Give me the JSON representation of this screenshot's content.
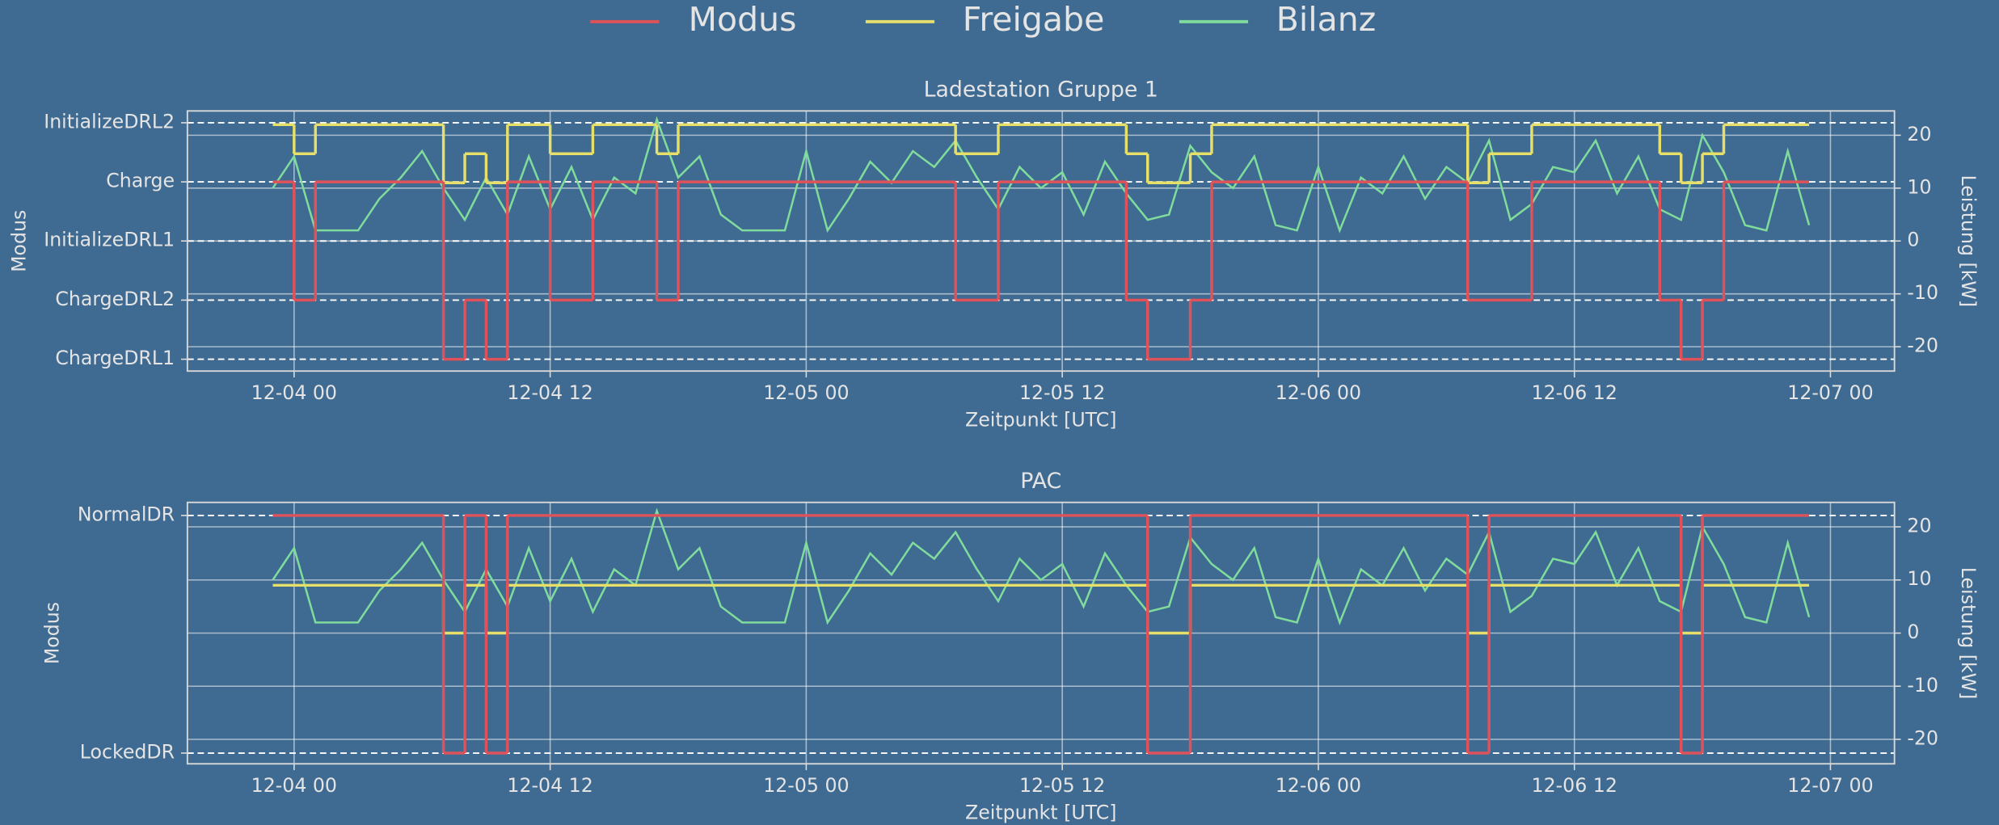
{
  "chart_data": [
    {
      "type": "line",
      "title": "Ladestation Gruppe 1",
      "xlabel": "Zeitpunkt [UTC]",
      "ylabel": "Modus",
      "y2label": "Leistung [kW]",
      "xlim": [
        "12-03 19",
        "12-07 03"
      ],
      "xticks": [
        "12-04 00",
        "12-04 12",
        "12-05 00",
        "12-05 12",
        "12-06 00",
        "12-06 12",
        "12-07 00"
      ],
      "ylim": [
        -0.2,
        4.2
      ],
      "yticks": [
        {
          "value": 4,
          "label": "InitializeDRL2"
        },
        {
          "value": 3,
          "label": "Charge"
        },
        {
          "value": 2,
          "label": "InitializeDRL1"
        },
        {
          "value": 1,
          "label": "ChargeDRL2"
        },
        {
          "value": 0,
          "label": "ChargeDRL1"
        }
      ],
      "y2lim": [
        -24.6,
        24.6
      ],
      "y2ticks": [
        -20,
        -10,
        0,
        10,
        20
      ],
      "grid": true,
      "legend": "upper center",
      "series": [
        {
          "name": "Modus",
          "color": "#e0525a",
          "drawstyle": "steps-post",
          "x": [
            "12-03 23",
            "12-04 00",
            "12-04 01",
            "12-04 07",
            "12-04 08",
            "12-04 09",
            "12-04 10",
            "12-04 12",
            "12-04 14",
            "12-04 17",
            "12-04 18",
            "12-05 07",
            "12-05 09",
            "12-05 15",
            "12-05 16",
            "12-05 18",
            "12-05 19",
            "12-06 07",
            "12-06 10",
            "12-06 16",
            "12-06 17",
            "12-06 18",
            "12-06 19",
            "12-06 23"
          ],
          "values": [
            3,
            1,
            3,
            0,
            1,
            0,
            3,
            1,
            3,
            1,
            3,
            1,
            3,
            1,
            0,
            1,
            3,
            1,
            3,
            1,
            0,
            1,
            3,
            3
          ]
        },
        {
          "name": "Freigabe",
          "color": "#e6df6a",
          "drawstyle": "steps-post",
          "axis": "y2",
          "x": [
            "12-03 23",
            "12-04 00",
            "12-04 01",
            "12-04 07",
            "12-04 08",
            "12-04 09",
            "12-04 10",
            "12-04 12",
            "12-04 14",
            "12-04 17",
            "12-04 18",
            "12-05 07",
            "12-05 09",
            "12-05 15",
            "12-05 16",
            "12-05 18",
            "12-05 19",
            "12-06 07",
            "12-06 08",
            "12-06 10",
            "12-06 16",
            "12-06 17",
            "12-06 18",
            "12-06 19",
            "12-06 23"
          ],
          "values": [
            22,
            16.5,
            22,
            11,
            16.5,
            11,
            22,
            16.5,
            22,
            16.5,
            22,
            16.5,
            22,
            16.5,
            11,
            16.5,
            22,
            11,
            16.5,
            22,
            16.5,
            11,
            16.5,
            22,
            22
          ]
        },
        {
          "name": "Bilanz",
          "color": "#7fdc9c",
          "axis": "y2",
          "x": [
            "12-03 23",
            "12-04 00",
            "12-04 01",
            "12-04 02",
            "12-04 03",
            "12-04 04",
            "12-04 05",
            "12-04 06",
            "12-04 07",
            "12-04 08",
            "12-04 09",
            "12-04 10",
            "12-04 11",
            "12-04 12",
            "12-04 13",
            "12-04 14",
            "12-04 15",
            "12-04 16",
            "12-04 17",
            "12-04 18",
            "12-04 19",
            "12-04 20",
            "12-04 21",
            "12-04 22",
            "12-04 23",
            "12-05 00",
            "12-05 01",
            "12-05 02",
            "12-05 03",
            "12-05 04",
            "12-05 05",
            "12-05 06",
            "12-05 07",
            "12-05 08",
            "12-05 09",
            "12-05 10",
            "12-05 11",
            "12-05 12",
            "12-05 13",
            "12-05 14",
            "12-05 15",
            "12-05 16",
            "12-05 17",
            "12-05 18",
            "12-05 19",
            "12-05 20",
            "12-05 21",
            "12-05 22",
            "12-05 23",
            "12-06 00",
            "12-06 01",
            "12-06 02",
            "12-06 03",
            "12-06 04",
            "12-06 05",
            "12-06 06",
            "12-06 07",
            "12-06 08",
            "12-06 09",
            "12-06 10",
            "12-06 11",
            "12-06 12",
            "12-06 13",
            "12-06 14",
            "12-06 15",
            "12-06 16",
            "12-06 17",
            "12-06 18",
            "12-06 19",
            "12-06 20",
            "12-06 21",
            "12-06 22",
            "12-06 23"
          ],
          "values": [
            10,
            16,
            2,
            2,
            2,
            8,
            12,
            17,
            10,
            4,
            12,
            5,
            16,
            6,
            14,
            4,
            12,
            9,
            23,
            12,
            16,
            5,
            2,
            2,
            2,
            17,
            2,
            8,
            15,
            11,
            17,
            14,
            19,
            12,
            6,
            14,
            10,
            13,
            5,
            15,
            9,
            4,
            5,
            18,
            13,
            10,
            16,
            3,
            2,
            14,
            2,
            12,
            9,
            16,
            8,
            14,
            11,
            19,
            4,
            7,
            14,
            13,
            19,
            9,
            16,
            6,
            4,
            20,
            13,
            3,
            2,
            17,
            3
          ]
        }
      ]
    },
    {
      "type": "line",
      "title": "PAC",
      "xlabel": "Zeitpunkt [UTC]",
      "ylabel": "Modus",
      "y2label": "Leistung [kW]",
      "xlim": [
        "12-03 19",
        "12-07 03"
      ],
      "xticks": [
        "12-04 00",
        "12-04 12",
        "12-05 00",
        "12-05 12",
        "12-06 00",
        "12-06 12",
        "12-07 00"
      ],
      "ylim": [
        -0.045,
        1.055
      ],
      "yticks": [
        {
          "value": 1,
          "label": "NormalDR"
        },
        {
          "value": 0,
          "label": "LockedDR"
        }
      ],
      "y2lim": [
        -24.6,
        24.6
      ],
      "y2ticks": [
        -20,
        -10,
        0,
        10,
        20
      ],
      "grid": true,
      "series": [
        {
          "name": "Modus",
          "color": "#e0525a",
          "drawstyle": "steps-post",
          "x": [
            "12-03 23",
            "12-04 07",
            "12-04 08",
            "12-04 09",
            "12-04 10",
            "12-05 16",
            "12-05 18",
            "12-06 07",
            "12-06 08",
            "12-06 17",
            "12-06 18",
            "12-06 23"
          ],
          "values": [
            1,
            0,
            1,
            0,
            1,
            0,
            1,
            0,
            1,
            0,
            1,
            1
          ]
        },
        {
          "name": "Freigabe",
          "color": "#e6df6a",
          "drawstyle": "steps-post",
          "axis": "y2",
          "x": [
            "12-03 23",
            "12-04 07",
            "12-04 08",
            "12-04 09",
            "12-04 10",
            "12-05 16",
            "12-05 18",
            "12-06 07",
            "12-06 08",
            "12-06 17",
            "12-06 18",
            "12-06 23"
          ],
          "values": [
            9,
            0,
            9,
            0,
            9,
            0,
            9,
            0,
            9,
            0,
            9,
            9
          ]
        },
        {
          "name": "Bilanz",
          "color": "#7fdc9c",
          "axis": "y2",
          "x": [
            "12-03 23",
            "12-04 00",
            "12-04 01",
            "12-04 02",
            "12-04 03",
            "12-04 04",
            "12-04 05",
            "12-04 06",
            "12-04 07",
            "12-04 08",
            "12-04 09",
            "12-04 10",
            "12-04 11",
            "12-04 12",
            "12-04 13",
            "12-04 14",
            "12-04 15",
            "12-04 16",
            "12-04 17",
            "12-04 18",
            "12-04 19",
            "12-04 20",
            "12-04 21",
            "12-04 22",
            "12-04 23",
            "12-05 00",
            "12-05 01",
            "12-05 02",
            "12-05 03",
            "12-05 04",
            "12-05 05",
            "12-05 06",
            "12-05 07",
            "12-05 08",
            "12-05 09",
            "12-05 10",
            "12-05 11",
            "12-05 12",
            "12-05 13",
            "12-05 14",
            "12-05 15",
            "12-05 16",
            "12-05 17",
            "12-05 18",
            "12-05 19",
            "12-05 20",
            "12-05 21",
            "12-05 22",
            "12-05 23",
            "12-06 00",
            "12-06 01",
            "12-06 02",
            "12-06 03",
            "12-06 04",
            "12-06 05",
            "12-06 06",
            "12-06 07",
            "12-06 08",
            "12-06 09",
            "12-06 10",
            "12-06 11",
            "12-06 12",
            "12-06 13",
            "12-06 14",
            "12-06 15",
            "12-06 16",
            "12-06 17",
            "12-06 18",
            "12-06 19",
            "12-06 20",
            "12-06 21",
            "12-06 22",
            "12-06 23"
          ],
          "values": [
            10,
            16,
            2,
            2,
            2,
            8,
            12,
            17,
            10,
            4,
            12,
            5,
            16,
            6,
            14,
            4,
            12,
            9,
            23,
            12,
            16,
            5,
            2,
            2,
            2,
            17,
            2,
            8,
            15,
            11,
            17,
            14,
            19,
            12,
            6,
            14,
            10,
            13,
            5,
            15,
            9,
            4,
            5,
            18,
            13,
            10,
            16,
            3,
            2,
            14,
            2,
            12,
            9,
            16,
            8,
            14,
            11,
            19,
            4,
            7,
            14,
            13,
            19,
            9,
            16,
            6,
            4,
            20,
            13,
            3,
            2,
            17,
            3
          ]
        }
      ]
    }
  ]
}
